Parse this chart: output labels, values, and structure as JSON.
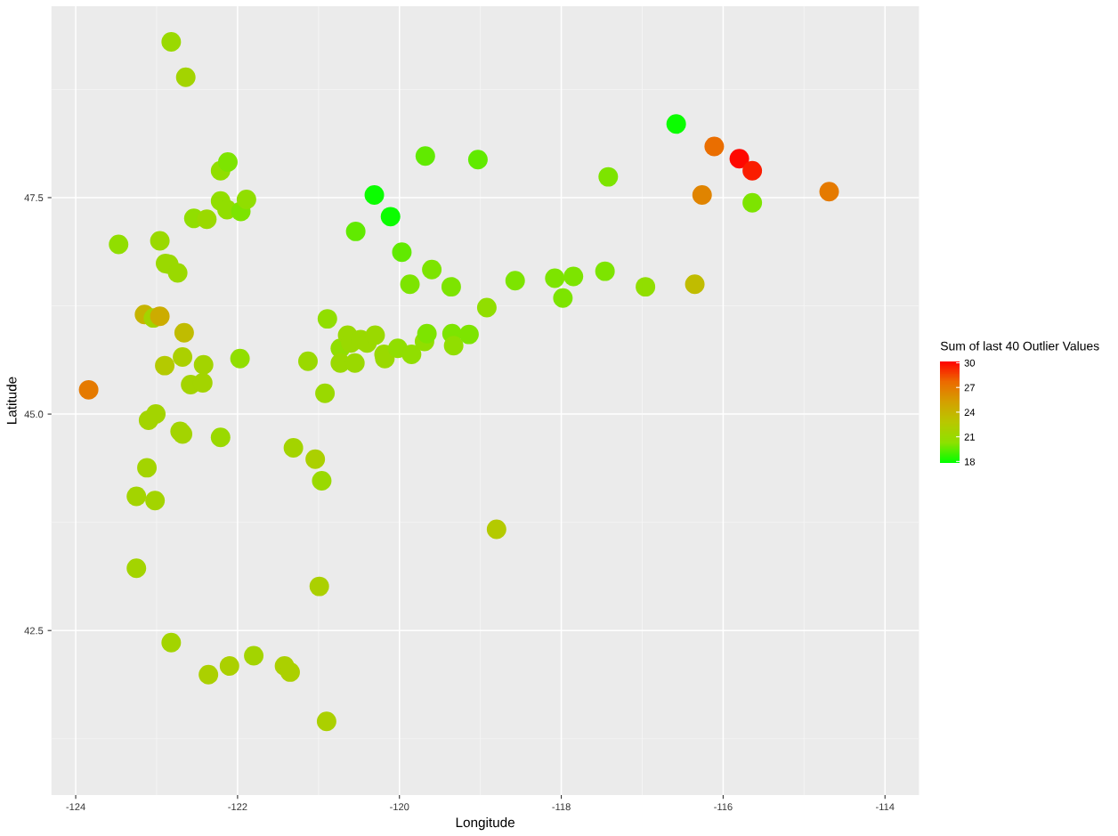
{
  "chart_data": {
    "type": "scatter",
    "xlabel": "Longitude",
    "ylabel": "Latitude",
    "clabel": "Sum of last 40 Outlier Values",
    "xlim": [
      -124.3,
      -113.58
    ],
    "ylim": [
      40.6,
      49.71
    ],
    "xticks": [
      -124,
      -122,
      -120,
      -118,
      -116,
      -114
    ],
    "yticks": [
      {
        "value": 42.5,
        "label": "42.5"
      },
      {
        "value": 45,
        "label": "45.0"
      },
      {
        "value": 47.5,
        "label": "47.5"
      }
    ],
    "clim": [
      17.8,
      30.2
    ],
    "cticks": [
      18,
      21,
      24,
      27,
      30
    ],
    "grid": true,
    "x": [
      -122.82,
      -122.64,
      -116.58,
      -116.11,
      -115.8,
      -115.64,
      -114.69,
      -116.26,
      -115.64,
      -119.68,
      -119.03,
      -117.42,
      -120.31,
      -120.11,
      -120.54,
      -119.97,
      -119.6,
      -119.87,
      -119.36,
      -118.57,
      -118.08,
      -117.85,
      -117.98,
      -117.46,
      -116.96,
      -116.35,
      -118.92,
      -122.21,
      -122.12,
      -122.21,
      -122.13,
      -121.96,
      -121.89,
      -122.54,
      -122.38,
      -123.47,
      -122.96,
      -122.89,
      -122.85,
      -122.74,
      -123.15,
      -123.04,
      -122.96,
      -122.66,
      -122.9,
      -122.68,
      -122.42,
      -122.58,
      -122.43,
      -121.97,
      -123.84,
      -123.1,
      -123.01,
      -122.71,
      -122.68,
      -122.21,
      -123.12,
      -123.25,
      -123.02,
      -123.25,
      -122.82,
      -122.36,
      -122.1,
      -121.8,
      -121.42,
      -121.35,
      -120.9,
      -120.99,
      -121.31,
      -121.04,
      -120.96,
      -120.92,
      -121.13,
      -120.89,
      -120.73,
      -120.64,
      -120.73,
      -120.55,
      -120.6,
      -120.48,
      -120.4,
      -120.3,
      -120.19,
      -120.18,
      -120.02,
      -119.85,
      -119.69,
      -119.66,
      -119.35,
      -119.33,
      -119.14,
      -118.8
    ],
    "values": [
      49.3,
      48.89,
      48.35,
      48.09,
      47.95,
      47.81,
      47.57,
      47.53,
      47.44,
      47.98,
      47.94,
      47.74,
      47.53,
      47.28,
      47.11,
      46.87,
      46.67,
      46.5,
      46.47,
      46.54,
      46.57,
      46.59,
      46.34,
      46.65,
      46.47,
      46.5,
      46.23,
      47.81,
      47.91,
      47.46,
      47.36,
      47.34,
      47.48,
      47.26,
      47.25,
      46.96,
      47.0,
      46.74,
      46.73,
      46.63,
      46.15,
      46.11,
      46.13,
      45.94,
      45.56,
      45.66,
      45.57,
      45.34,
      45.36,
      45.64,
      45.28,
      44.93,
      45.0,
      44.8,
      44.77,
      44.73,
      44.38,
      44.05,
      44.0,
      43.22,
      42.36,
      41.99,
      42.09,
      42.21,
      42.09,
      42.02,
      41.45,
      43.01,
      44.61,
      44.48,
      44.23,
      45.24,
      45.61,
      46.1,
      45.76,
      45.91,
      45.59,
      45.59,
      45.82,
      45.86,
      45.82,
      45.91,
      45.69,
      45.64,
      45.76,
      45.69,
      45.84,
      45.93,
      45.93,
      45.79,
      45.92,
      43.67
    ],
    "cvalues": [
      21,
      21.5,
      18,
      27.5,
      30,
      29.5,
      27,
      26.5,
      20,
      19.5,
      19.5,
      20,
      18,
      18,
      19.5,
      19.5,
      20,
      20,
      20,
      20,
      20,
      20,
      20,
      20,
      20.5,
      23.5,
      20.5,
      20.5,
      20,
      20.5,
      20.5,
      20,
      20.5,
      20.5,
      21,
      20.5,
      21,
      21,
      21,
      21,
      24,
      21.5,
      24.5,
      23.5,
      22.5,
      22,
      21.5,
      21.5,
      21.5,
      20.5,
      27,
      21.5,
      21.5,
      21.5,
      21.5,
      21,
      21.5,
      21.5,
      21.5,
      21.5,
      21.5,
      22,
      22,
      21.5,
      22,
      22,
      22,
      22,
      21.5,
      22,
      21,
      21,
      21,
      20.5,
      20.5,
      21,
      21,
      21,
      21,
      21,
      21,
      21,
      21,
      21,
      20.5,
      20.5,
      20.5,
      20,
      20,
      20.5,
      20,
      22.5
    ]
  }
}
